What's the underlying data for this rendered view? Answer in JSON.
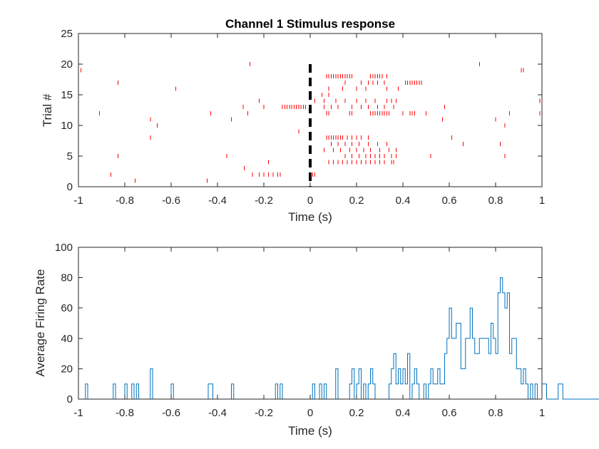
{
  "colors": {
    "spikes": "#ff0000",
    "onset": "#000000",
    "psth": "#0072BD",
    "axis": "#262626"
  },
  "chart_data": [
    {
      "type": "scatter",
      "marker": "vertical-tick",
      "title": "Channel 1 Stimulus response",
      "xlabel": "Time (s)",
      "ylabel": "Trial #",
      "xlim": [
        -1,
        1
      ],
      "ylim": [
        0,
        25
      ],
      "xticks": [
        -1,
        -0.8,
        -0.6,
        -0.4,
        -0.2,
        0,
        0.2,
        0.4,
        0.6,
        0.8,
        1
      ],
      "xtick_labels": [
        "-1",
        "-0.8",
        "-0.6",
        "-0.4",
        "-0.2",
        "0",
        "0.2",
        "0.4",
        "0.6",
        "0.8",
        "1"
      ],
      "yticks": [
        0,
        5,
        10,
        15,
        20,
        25
      ],
      "ytick_labels": [
        "0",
        "5",
        "10",
        "15",
        "20",
        "25"
      ],
      "grid": false,
      "stimulus_onset": 0,
      "trials": [
        {
          "trial": 1,
          "times": [
            -0.755,
            -0.445
          ]
        },
        {
          "trial": 2,
          "times": [
            -0.86,
            -0.25,
            -0.22,
            -0.2,
            -0.18,
            -0.16,
            -0.14,
            -0.13,
            0.01,
            0.02
          ]
        },
        {
          "trial": 3,
          "times": [
            -0.285
          ]
        },
        {
          "trial": 4,
          "times": [
            -0.18,
            0.08,
            0.1,
            0.12,
            0.14,
            0.16,
            0.18,
            0.2,
            0.22,
            0.24,
            0.26,
            0.28,
            0.3,
            0.32,
            0.35,
            0.36
          ]
        },
        {
          "trial": 5,
          "times": [
            -0.83,
            -0.36,
            0.15,
            0.18,
            0.21,
            0.24,
            0.26,
            0.28,
            0.3,
            0.32,
            0.35,
            0.37,
            0.52,
            0.84
          ]
        },
        {
          "trial": 6,
          "times": [
            0.06,
            0.1,
            0.13,
            0.17,
            0.2,
            0.23,
            0.26,
            0.3,
            0.34,
            0.37
          ]
        },
        {
          "trial": 7,
          "times": [
            0.09,
            0.12,
            0.15,
            0.18,
            0.21,
            0.25,
            0.29,
            0.33,
            0.66,
            0.82
          ]
        },
        {
          "trial": 8,
          "times": [
            -0.69,
            0.0,
            0.07,
            0.08,
            0.09,
            0.1,
            0.11,
            0.12,
            0.13,
            0.14,
            0.16,
            0.18,
            0.2,
            0.22,
            0.25,
            0.61
          ]
        },
        {
          "trial": 9,
          "times": [
            -0.05
          ]
        },
        {
          "trial": 10,
          "times": [
            -0.66,
            0.84
          ]
        },
        {
          "trial": 11,
          "times": [
            -0.69,
            -0.34,
            0.57,
            0.8
          ]
        },
        {
          "trial": 12,
          "times": [
            -0.91,
            -0.43,
            -0.27,
            0.07,
            0.08,
            0.17,
            0.18,
            0.26,
            0.27,
            0.28,
            0.29,
            0.3,
            0.31,
            0.32,
            0.33,
            0.34,
            0.4,
            0.43,
            0.44,
            0.45,
            0.5,
            0.86,
            0.99
          ]
        },
        {
          "trial": 13,
          "times": [
            -0.29,
            -0.2,
            -0.12,
            -0.11,
            -0.1,
            -0.09,
            -0.08,
            -0.07,
            -0.06,
            -0.05,
            -0.04,
            -0.03,
            -0.02,
            0.06,
            0.09,
            0.12,
            0.18,
            0.22,
            0.25,
            0.29,
            0.32,
            0.36,
            0.58
          ]
        },
        {
          "trial": 14,
          "times": [
            -0.22,
            0.02,
            0.06,
            0.11,
            0.15,
            0.2,
            0.24,
            0.28,
            0.33,
            0.35,
            0.37,
            0.99
          ]
        },
        {
          "trial": 15,
          "times": [
            0.05,
            0.08
          ]
        },
        {
          "trial": 16,
          "times": [
            -0.58,
            0.08,
            0.14,
            0.2,
            0.24,
            0.33,
            0.38
          ]
        },
        {
          "trial": 17,
          "times": [
            -0.83,
            0.15,
            0.22,
            0.25,
            0.27,
            0.29,
            0.32,
            0.41,
            0.42,
            0.43,
            0.44,
            0.45,
            0.46,
            0.47,
            0.48
          ]
        },
        {
          "trial": 18,
          "times": [
            0.07,
            0.08,
            0.09,
            0.1,
            0.11,
            0.12,
            0.13,
            0.14,
            0.15,
            0.16,
            0.17,
            0.18,
            0.26,
            0.27,
            0.28,
            0.29,
            0.3,
            0.31,
            0.33
          ]
        },
        {
          "trial": 19,
          "times": [
            -0.99,
            0.91,
            0.92
          ]
        },
        {
          "trial": 20,
          "times": [
            -0.26,
            0.73
          ]
        }
      ]
    },
    {
      "type": "line",
      "style": "stairs",
      "xlabel": "Time (s)",
      "ylabel": "Average Firing Rate",
      "xlim": [
        -1,
        1
      ],
      "ylim": [
        0,
        100
      ],
      "xticks": [
        -1,
        -0.8,
        -0.6,
        -0.4,
        -0.2,
        0,
        0.2,
        0.4,
        0.6,
        0.8,
        1
      ],
      "xtick_labels": [
        "-1",
        "-0.8",
        "-0.6",
        "-0.4",
        "-0.2",
        "0",
        "0.2",
        "0.4",
        "0.6",
        "0.8",
        "1"
      ],
      "yticks": [
        0,
        20,
        40,
        60,
        80,
        100
      ],
      "ytick_labels": [
        "0",
        "20",
        "40",
        "60",
        "80",
        "100"
      ],
      "grid": false,
      "bin_width": 0.01,
      "bin_start": -1,
      "values": [
        0,
        0,
        0,
        10,
        0,
        0,
        0,
        0,
        0,
        0,
        0,
        0,
        0,
        0,
        0,
        10,
        0,
        0,
        0,
        0,
        10,
        0,
        0,
        10,
        0,
        10,
        0,
        0,
        0,
        0,
        0,
        20,
        0,
        0,
        0,
        0,
        0,
        0,
        0,
        0,
        10,
        0,
        0,
        0,
        0,
        0,
        0,
        0,
        0,
        0,
        0,
        0,
        0,
        0,
        0,
        0,
        10,
        10,
        0,
        0,
        0,
        0,
        0,
        0,
        0,
        0,
        10,
        0,
        0,
        0,
        0,
        0,
        0,
        0,
        0,
        0,
        0,
        0,
        0,
        0,
        0,
        0,
        0,
        0,
        0,
        10,
        0,
        10,
        0,
        0,
        0,
        0,
        0,
        0,
        0,
        0,
        0,
        0,
        0,
        0,
        0,
        10,
        0,
        0,
        10,
        0,
        10,
        0,
        0,
        0,
        0,
        20,
        0,
        0,
        0,
        0,
        0,
        10,
        20,
        0,
        10,
        20,
        0,
        10,
        0,
        10,
        20,
        10,
        0,
        0,
        0,
        0,
        0,
        0,
        10,
        20,
        30,
        10,
        20,
        10,
        20,
        10,
        30,
        0,
        10,
        20,
        10,
        0,
        0,
        10,
        0,
        10,
        20,
        10,
        10,
        20,
        10,
        10,
        30,
        40,
        60,
        40,
        40,
        50,
        50,
        20,
        20,
        40,
        40,
        60,
        40,
        30,
        30,
        40,
        40,
        40,
        40,
        30,
        50,
        40,
        30,
        70,
        80,
        70,
        60,
        70,
        30,
        40,
        40,
        20,
        20,
        10,
        20,
        10,
        0,
        10,
        0,
        10,
        0,
        0,
        10,
        10,
        0,
        0,
        0,
        0,
        0,
        10,
        10,
        0,
        0,
        0,
        0,
        0,
        0,
        0,
        0,
        0,
        0,
        0,
        0,
        0,
        0,
        0,
        0,
        0,
        0,
        0,
        0,
        0,
        0,
        0,
        0,
        0,
        0,
        0,
        0,
        0,
        0,
        0,
        0,
        0,
        0,
        0,
        0,
        0,
        0,
        0,
        0,
        0
      ],
      "values_note_free": true
    }
  ]
}
